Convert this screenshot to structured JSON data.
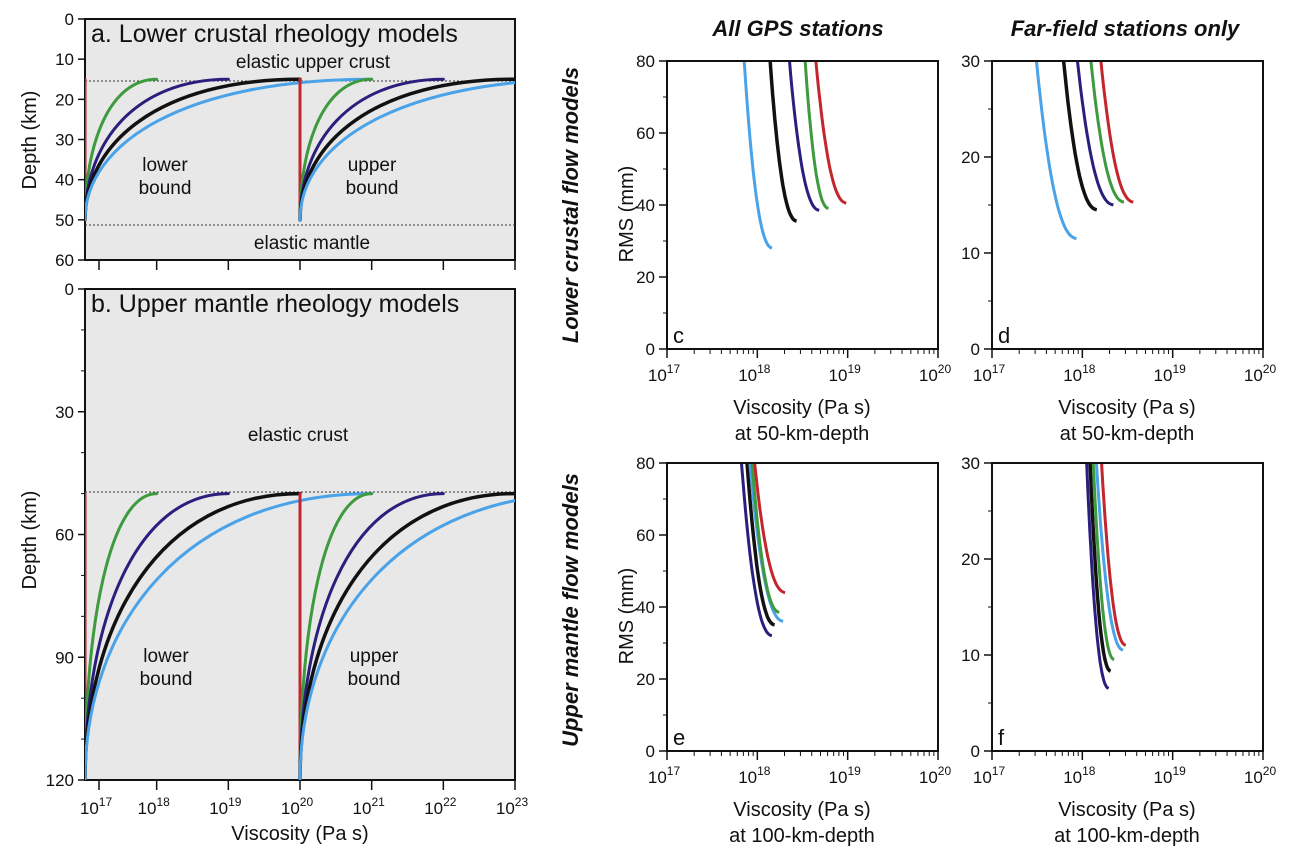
{
  "colors": {
    "background": "#e8e8e8",
    "red": "#c4262e",
    "green": "#3e9a3e",
    "navy": "#2b1f7e",
    "black": "#111111",
    "lightblue": "#4aa3e8"
  },
  "figure": {
    "col_header_left": "All GPS stations",
    "col_header_right": "Far-field stations only",
    "row_header_top": "Lower crustal flow models",
    "row_header_bottom": "Upper mantle flow models"
  },
  "panel_a": {
    "title": "a. Lower crustal rheology models",
    "ylabel": "Depth (km)",
    "label_upper": "elastic upper crust",
    "label_lower": "elastic mantle",
    "lower_bound": [
      "lower",
      "bound"
    ],
    "upper_bound": [
      "upper",
      "bound"
    ],
    "y_ticks": [
      "0",
      "10",
      "20",
      "30",
      "40",
      "50",
      "60"
    ]
  },
  "panel_b": {
    "title": "b. Upper mantle rheology models",
    "ylabel": "Depth (km)",
    "label_crust": "elastic crust",
    "lower_bound": [
      "lower",
      "bound"
    ],
    "upper_bound": [
      "upper",
      "bound"
    ],
    "y_ticks": [
      "0",
      "30",
      "60",
      "90",
      "120"
    ],
    "xlabel": "Viscosity (Pa s)",
    "x_ticks": [
      {
        "base": "10",
        "exp": "17"
      },
      {
        "base": "10",
        "exp": "18"
      },
      {
        "base": "10",
        "exp": "19"
      },
      {
        "base": "10",
        "exp": "20"
      },
      {
        "base": "10",
        "exp": "21"
      },
      {
        "base": "10",
        "exp": "22"
      },
      {
        "base": "10",
        "exp": "23"
      }
    ]
  },
  "rms_panels": {
    "ylabel": "RMS (mm)",
    "x_ticks": [
      {
        "base": "10",
        "exp": "17"
      },
      {
        "base": "10",
        "exp": "18"
      },
      {
        "base": "10",
        "exp": "19"
      },
      {
        "base": "10",
        "exp": "20"
      }
    ],
    "xlabel_line1": "Viscosity (Pa s)",
    "xlabel_top_line2": "at 50-km-depth",
    "xlabel_bottom_line2": "at 100-km-depth",
    "letters": [
      "c",
      "d",
      "e",
      "f"
    ],
    "y_ticks_all": [
      "0",
      "20",
      "40",
      "60",
      "80"
    ],
    "y_ticks_far": [
      "0",
      "10",
      "20",
      "30"
    ]
  },
  "chart_data": [
    {
      "type": "line",
      "title": "a. Lower crustal rheology models",
      "ylabel": "Depth (km)",
      "xscale": "log",
      "xlim": [
        1e+17,
        1e+23
      ],
      "ylim": [
        60,
        0
      ],
      "series": [
        {
          "color": "red",
          "x": [
            1e+17,
            1e+17
          ],
          "y": [
            15,
            50
          ]
        },
        {
          "color": "green",
          "x": [
            1e+17,
            1e+18
          ],
          "y": [
            50,
            15
          ]
        },
        {
          "color": "navy",
          "x": [
            1e+17,
            1e+19
          ],
          "y": [
            50,
            15
          ]
        },
        {
          "color": "black",
          "x": [
            1e+17,
            1e+20
          ],
          "y": [
            50,
            15
          ]
        },
        {
          "color": "lightblue",
          "x": [
            1e+17,
            1e+21
          ],
          "y": [
            50,
            15
          ]
        },
        {
          "color": "red",
          "x": [
            1e+20,
            1e+20
          ],
          "y": [
            15,
            50
          ]
        },
        {
          "color": "green",
          "x": [
            1e+20,
            1e+21
          ],
          "y": [
            50,
            15
          ]
        },
        {
          "color": "navy",
          "x": [
            1e+20,
            1e+22
          ],
          "y": [
            50,
            15
          ]
        },
        {
          "color": "black",
          "x": [
            1e+20,
            1e+23
          ],
          "y": [
            50,
            15
          ]
        },
        {
          "color": "lightblue",
          "x": [
            1e+20,
            1e+24
          ],
          "y": [
            50,
            15
          ]
        }
      ]
    },
    {
      "type": "line",
      "title": "b. Upper mantle rheology models",
      "xlabel": "Viscosity (Pa s)",
      "ylabel": "Depth (km)",
      "xscale": "log",
      "xlim": [
        1e+17,
        1e+23
      ],
      "ylim": [
        120,
        0
      ],
      "series": [
        {
          "color": "red",
          "x": [
            1e+17,
            1e+17
          ],
          "y": [
            50,
            120
          ]
        },
        {
          "color": "green",
          "x": [
            1e+17,
            1e+18
          ],
          "y": [
            120,
            50
          ]
        },
        {
          "color": "navy",
          "x": [
            1e+17,
            1e+19
          ],
          "y": [
            120,
            50
          ]
        },
        {
          "color": "black",
          "x": [
            1e+17,
            1e+20
          ],
          "y": [
            120,
            50
          ]
        },
        {
          "color": "lightblue",
          "x": [
            1e+17,
            1e+21
          ],
          "y": [
            120,
            50
          ]
        },
        {
          "color": "red",
          "x": [
            1e+20,
            1e+20
          ],
          "y": [
            50,
            120
          ]
        },
        {
          "color": "green",
          "x": [
            1e+20,
            1e+21
          ],
          "y": [
            120,
            50
          ]
        },
        {
          "color": "navy",
          "x": [
            1e+20,
            1e+22
          ],
          "y": [
            120,
            50
          ]
        },
        {
          "color": "black",
          "x": [
            1e+20,
            1e+23
          ],
          "y": [
            120,
            50
          ]
        },
        {
          "color": "lightblue",
          "x": [
            1e+20,
            1e+24
          ],
          "y": [
            120,
            50
          ]
        }
      ]
    },
    {
      "type": "line",
      "label": "c",
      "xlabel": "Viscosity (Pa s) at 50-km-depth",
      "ylabel": "RMS (mm)",
      "xscale": "log",
      "xlim": [
        1e+17,
        1e+20
      ],
      "ylim": [
        0,
        80
      ],
      "series": [
        {
          "color": "lightblue",
          "x_min": 1.5e+18,
          "y_min": 28,
          "x_top": 7e+17,
          "y_end": 63
        },
        {
          "color": "black",
          "x_min": 2.8e+18,
          "y_min": 35.5,
          "x_top": 1.35e+18,
          "y_end": 63
        },
        {
          "color": "navy",
          "x_min": 5e+18,
          "y_min": 38.5,
          "x_top": 2.2e+18,
          "y_end": 63
        },
        {
          "color": "green",
          "x_min": 6.3e+18,
          "y_min": 39,
          "x_top": 3.3e+18,
          "y_end": 63.5
        },
        {
          "color": "red",
          "x_min": 1e+19,
          "y_min": 40.5,
          "x_top": 4.3e+18,
          "y_end": 64
        }
      ]
    },
    {
      "type": "line",
      "label": "d",
      "xlabel": "Viscosity (Pa s) at 50-km-depth",
      "ylabel": "RMS (mm)",
      "xscale": "log",
      "xlim": [
        1e+17,
        1e+20
      ],
      "ylim": [
        0,
        30
      ],
      "series": [
        {
          "color": "lightblue",
          "x_min": 9e+17,
          "y_min": 11.5,
          "x_top": 3e+17,
          "y_end": 18.7
        },
        {
          "color": "black",
          "x_min": 1.5e+18,
          "y_min": 14.5,
          "x_top": 6e+17,
          "y_end": 18.8
        },
        {
          "color": "navy",
          "x_min": 2.3e+18,
          "y_min": 15,
          "x_top": 8.5e+17,
          "y_end": 18.8
        },
        {
          "color": "green",
          "x_min": 3e+18,
          "y_min": 15.3,
          "x_top": 1.2e+18,
          "y_end": 18.8
        },
        {
          "color": "red",
          "x_min": 3.8e+18,
          "y_min": 15.3,
          "x_top": 1.55e+18,
          "y_end": 18.9
        }
      ]
    },
    {
      "type": "line",
      "label": "e",
      "xlabel": "Viscosity (Pa s) at 100-km-depth",
      "ylabel": "RMS (mm)",
      "xscale": "log",
      "xlim": [
        1e+17,
        1e+20
      ],
      "ylim": [
        0,
        80
      ],
      "series": [
        {
          "color": "navy",
          "x_min": 1.5e+18,
          "y_min": 32,
          "x_top": 6.5e+17,
          "y_end": 63
        },
        {
          "color": "black",
          "x_min": 1.6e+18,
          "y_min": 35,
          "x_top": 7.5e+17,
          "y_end": 63.3
        },
        {
          "color": "lightblue",
          "x_min": 2e+18,
          "y_min": 36,
          "x_top": 8e+17,
          "y_end": 64
        },
        {
          "color": "green",
          "x_min": 1.8e+18,
          "y_min": 38.5,
          "x_top": 8.5e+17,
          "y_end": 64
        },
        {
          "color": "red",
          "x_min": 2.1e+18,
          "y_min": 44,
          "x_top": 9e+17,
          "y_end": 63.5
        }
      ]
    },
    {
      "type": "line",
      "label": "f",
      "xlabel": "Viscosity (Pa s) at 100-km-depth",
      "ylabel": "RMS (mm)",
      "xscale": "log",
      "xlim": [
        1e+17,
        1e+20
      ],
      "ylim": [
        0,
        30
      ],
      "series": [
        {
          "color": "navy",
          "x_min": 2e+18,
          "y_min": 6.5,
          "x_top": 1.1e+18,
          "y_end": 16.5
        },
        {
          "color": "black",
          "x_min": 2.1e+18,
          "y_min": 8.3,
          "x_top": 1.2e+18,
          "y_end": 17
        },
        {
          "color": "green",
          "x_min": 2.3e+18,
          "y_min": 9.5,
          "x_top": 1.3e+18,
          "y_end": 17.5
        },
        {
          "color": "lightblue",
          "x_min": 2.9e+18,
          "y_min": 10.5,
          "x_top": 1.4e+18,
          "y_end": 17.5
        },
        {
          "color": "red",
          "x_min": 3.1e+18,
          "y_min": 11,
          "x_top": 1.6e+18,
          "y_end": 18
        }
      ]
    }
  ]
}
